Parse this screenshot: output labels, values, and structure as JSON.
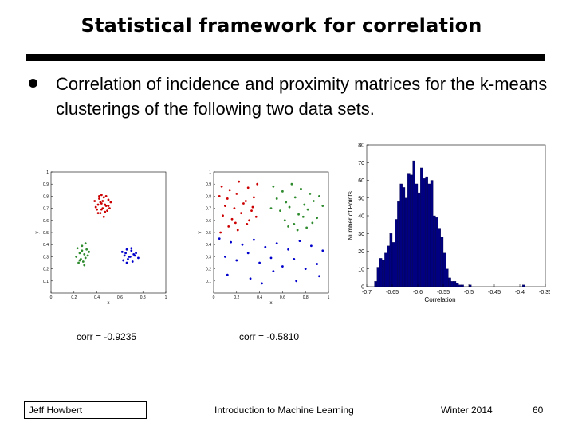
{
  "slide": {
    "title": "Statistical framework for correlation",
    "bullet": "Correlation of incidence and proximity matrices for the k-means clusterings of the following two data sets."
  },
  "scatter_axes": {
    "xlabel": "x",
    "ylabel": "y",
    "xticks": [
      "0",
      "0.2",
      "0.4",
      "0.6",
      "0.8",
      "1"
    ],
    "yticks": [
      "0.1",
      "0.2",
      "0.3",
      "0.4",
      "0.5",
      "0.6",
      "0.7",
      "0.8",
      "0.9",
      "1"
    ]
  },
  "captions": {
    "left": "corr = -0.9235",
    "right": "corr = -0.5810"
  },
  "colors": {
    "cluster_red": "#cc0000",
    "cluster_green": "#2e8b2e",
    "cluster_blue": "#0000cc",
    "histogram_bar": "#000080"
  },
  "chart_data": [
    {
      "type": "scatter",
      "title": "",
      "xlabel": "x",
      "ylabel": "y",
      "xlim": [
        0,
        1
      ],
      "ylim": [
        0,
        1
      ],
      "series": [
        {
          "name": "cluster-red",
          "color": "#cc0000",
          "x": [
            0.38,
            0.42,
            0.46,
            0.5,
            0.41,
            0.44,
            0.48,
            0.52,
            0.4,
            0.45,
            0.49,
            0.43,
            0.47,
            0.39,
            0.51,
            0.44,
            0.46,
            0.42,
            0.48,
            0.45,
            0.41,
            0.5,
            0.43,
            0.47,
            0.44
          ],
          "y": [
            0.76,
            0.8,
            0.79,
            0.77,
            0.73,
            0.74,
            0.72,
            0.75,
            0.69,
            0.7,
            0.68,
            0.66,
            0.67,
            0.71,
            0.7,
            0.81,
            0.63,
            0.78,
            0.8,
            0.76,
            0.66,
            0.72,
            0.75,
            0.73,
            0.69
          ]
        },
        {
          "name": "cluster-green",
          "color": "#2e8b2e",
          "x": [
            0.23,
            0.27,
            0.31,
            0.25,
            0.29,
            0.33,
            0.22,
            0.26,
            0.3,
            0.28,
            0.24,
            0.32,
            0.27,
            0.3,
            0.25,
            0.29
          ],
          "y": [
            0.37,
            0.39,
            0.36,
            0.33,
            0.32,
            0.34,
            0.3,
            0.28,
            0.29,
            0.26,
            0.25,
            0.31,
            0.35,
            0.41,
            0.27,
            0.23
          ]
        },
        {
          "name": "cluster-blue",
          "color": "#0000cc",
          "x": [
            0.62,
            0.66,
            0.7,
            0.74,
            0.64,
            0.68,
            0.72,
            0.76,
            0.63,
            0.67,
            0.71,
            0.65,
            0.69,
            0.73,
            0.7,
            0.66
          ],
          "y": [
            0.34,
            0.36,
            0.35,
            0.33,
            0.31,
            0.3,
            0.32,
            0.29,
            0.27,
            0.28,
            0.26,
            0.33,
            0.3,
            0.31,
            0.37,
            0.25
          ]
        }
      ]
    },
    {
      "type": "scatter",
      "title": "",
      "xlabel": "x",
      "ylabel": "y",
      "xlim": [
        0,
        1
      ],
      "ylim": [
        0,
        1
      ],
      "series": [
        {
          "name": "cluster-red",
          "color": "#cc0000",
          "x": [
            0.07,
            0.14,
            0.22,
            0.3,
            0.38,
            0.05,
            0.12,
            0.2,
            0.28,
            0.35,
            0.1,
            0.18,
            0.26,
            0.33,
            0.08,
            0.16,
            0.24,
            0.31,
            0.37,
            0.13,
            0.21,
            0.29,
            0.06,
            0.19,
            0.34
          ],
          "y": [
            0.88,
            0.85,
            0.92,
            0.87,
            0.9,
            0.8,
            0.78,
            0.82,
            0.76,
            0.79,
            0.72,
            0.7,
            0.74,
            0.68,
            0.64,
            0.61,
            0.66,
            0.6,
            0.63,
            0.55,
            0.52,
            0.57,
            0.5,
            0.58,
            0.71
          ]
        },
        {
          "name": "cluster-green",
          "color": "#2e8b2e",
          "x": [
            0.52,
            0.6,
            0.68,
            0.76,
            0.84,
            0.92,
            0.55,
            0.63,
            0.71,
            0.79,
            0.87,
            0.58,
            0.66,
            0.74,
            0.82,
            0.9,
            0.5,
            0.62,
            0.7,
            0.78,
            0.86,
            0.65,
            0.73,
            0.81,
            0.95
          ],
          "y": [
            0.88,
            0.84,
            0.9,
            0.86,
            0.82,
            0.8,
            0.78,
            0.75,
            0.79,
            0.73,
            0.76,
            0.68,
            0.71,
            0.65,
            0.69,
            0.62,
            0.7,
            0.6,
            0.57,
            0.63,
            0.58,
            0.55,
            0.52,
            0.54,
            0.72
          ]
        },
        {
          "name": "cluster-blue",
          "color": "#0000cc",
          "x": [
            0.05,
            0.15,
            0.25,
            0.35,
            0.45,
            0.55,
            0.65,
            0.75,
            0.85,
            0.95,
            0.1,
            0.2,
            0.3,
            0.4,
            0.5,
            0.6,
            0.7,
            0.8,
            0.9,
            0.12,
            0.32,
            0.52,
            0.72,
            0.92,
            0.42
          ],
          "y": [
            0.45,
            0.42,
            0.4,
            0.44,
            0.38,
            0.41,
            0.36,
            0.43,
            0.39,
            0.35,
            0.3,
            0.27,
            0.33,
            0.25,
            0.29,
            0.22,
            0.28,
            0.2,
            0.24,
            0.15,
            0.12,
            0.18,
            0.1,
            0.14,
            0.08
          ]
        }
      ]
    },
    {
      "type": "bar",
      "title": "",
      "xlabel": "Correlation",
      "ylabel": "Number of Points",
      "xlim": [
        -0.7,
        -0.35
      ],
      "ylim": [
        0,
        80
      ],
      "xticks": [
        "-0.7",
        "-0.65",
        "-0.6",
        "-0.55",
        "-0.5",
        "-0.45",
        "-0.4",
        "-0.35"
      ],
      "yticks": [
        "0",
        "10",
        "20",
        "30",
        "40",
        "50",
        "60",
        "70",
        "80"
      ],
      "bin_width": 0.005,
      "x": [
        -0.6825,
        -0.6775,
        -0.6725,
        -0.6675,
        -0.6625,
        -0.6575,
        -0.6525,
        -0.6475,
        -0.6425,
        -0.6375,
        -0.6325,
        -0.6275,
        -0.6225,
        -0.6175,
        -0.6125,
        -0.6075,
        -0.6025,
        -0.5975,
        -0.5925,
        -0.5875,
        -0.5825,
        -0.5775,
        -0.5725,
        -0.5675,
        -0.5625,
        -0.5575,
        -0.5525,
        -0.5475,
        -0.5425,
        -0.5375,
        -0.5325,
        -0.5275,
        -0.5225,
        -0.5175,
        -0.5125,
        -0.5075,
        -0.5025,
        -0.4975,
        -0.4925,
        -0.3925
      ],
      "values": [
        3,
        11,
        16,
        15,
        19,
        23,
        30,
        25,
        38,
        48,
        58,
        56,
        50,
        64,
        63,
        71,
        58,
        53,
        67,
        61,
        62,
        58,
        60,
        40,
        39,
        33,
        28,
        19,
        10,
        5,
        3,
        3,
        2,
        1,
        1,
        0,
        0,
        1,
        0,
        1
      ]
    }
  ]
}
